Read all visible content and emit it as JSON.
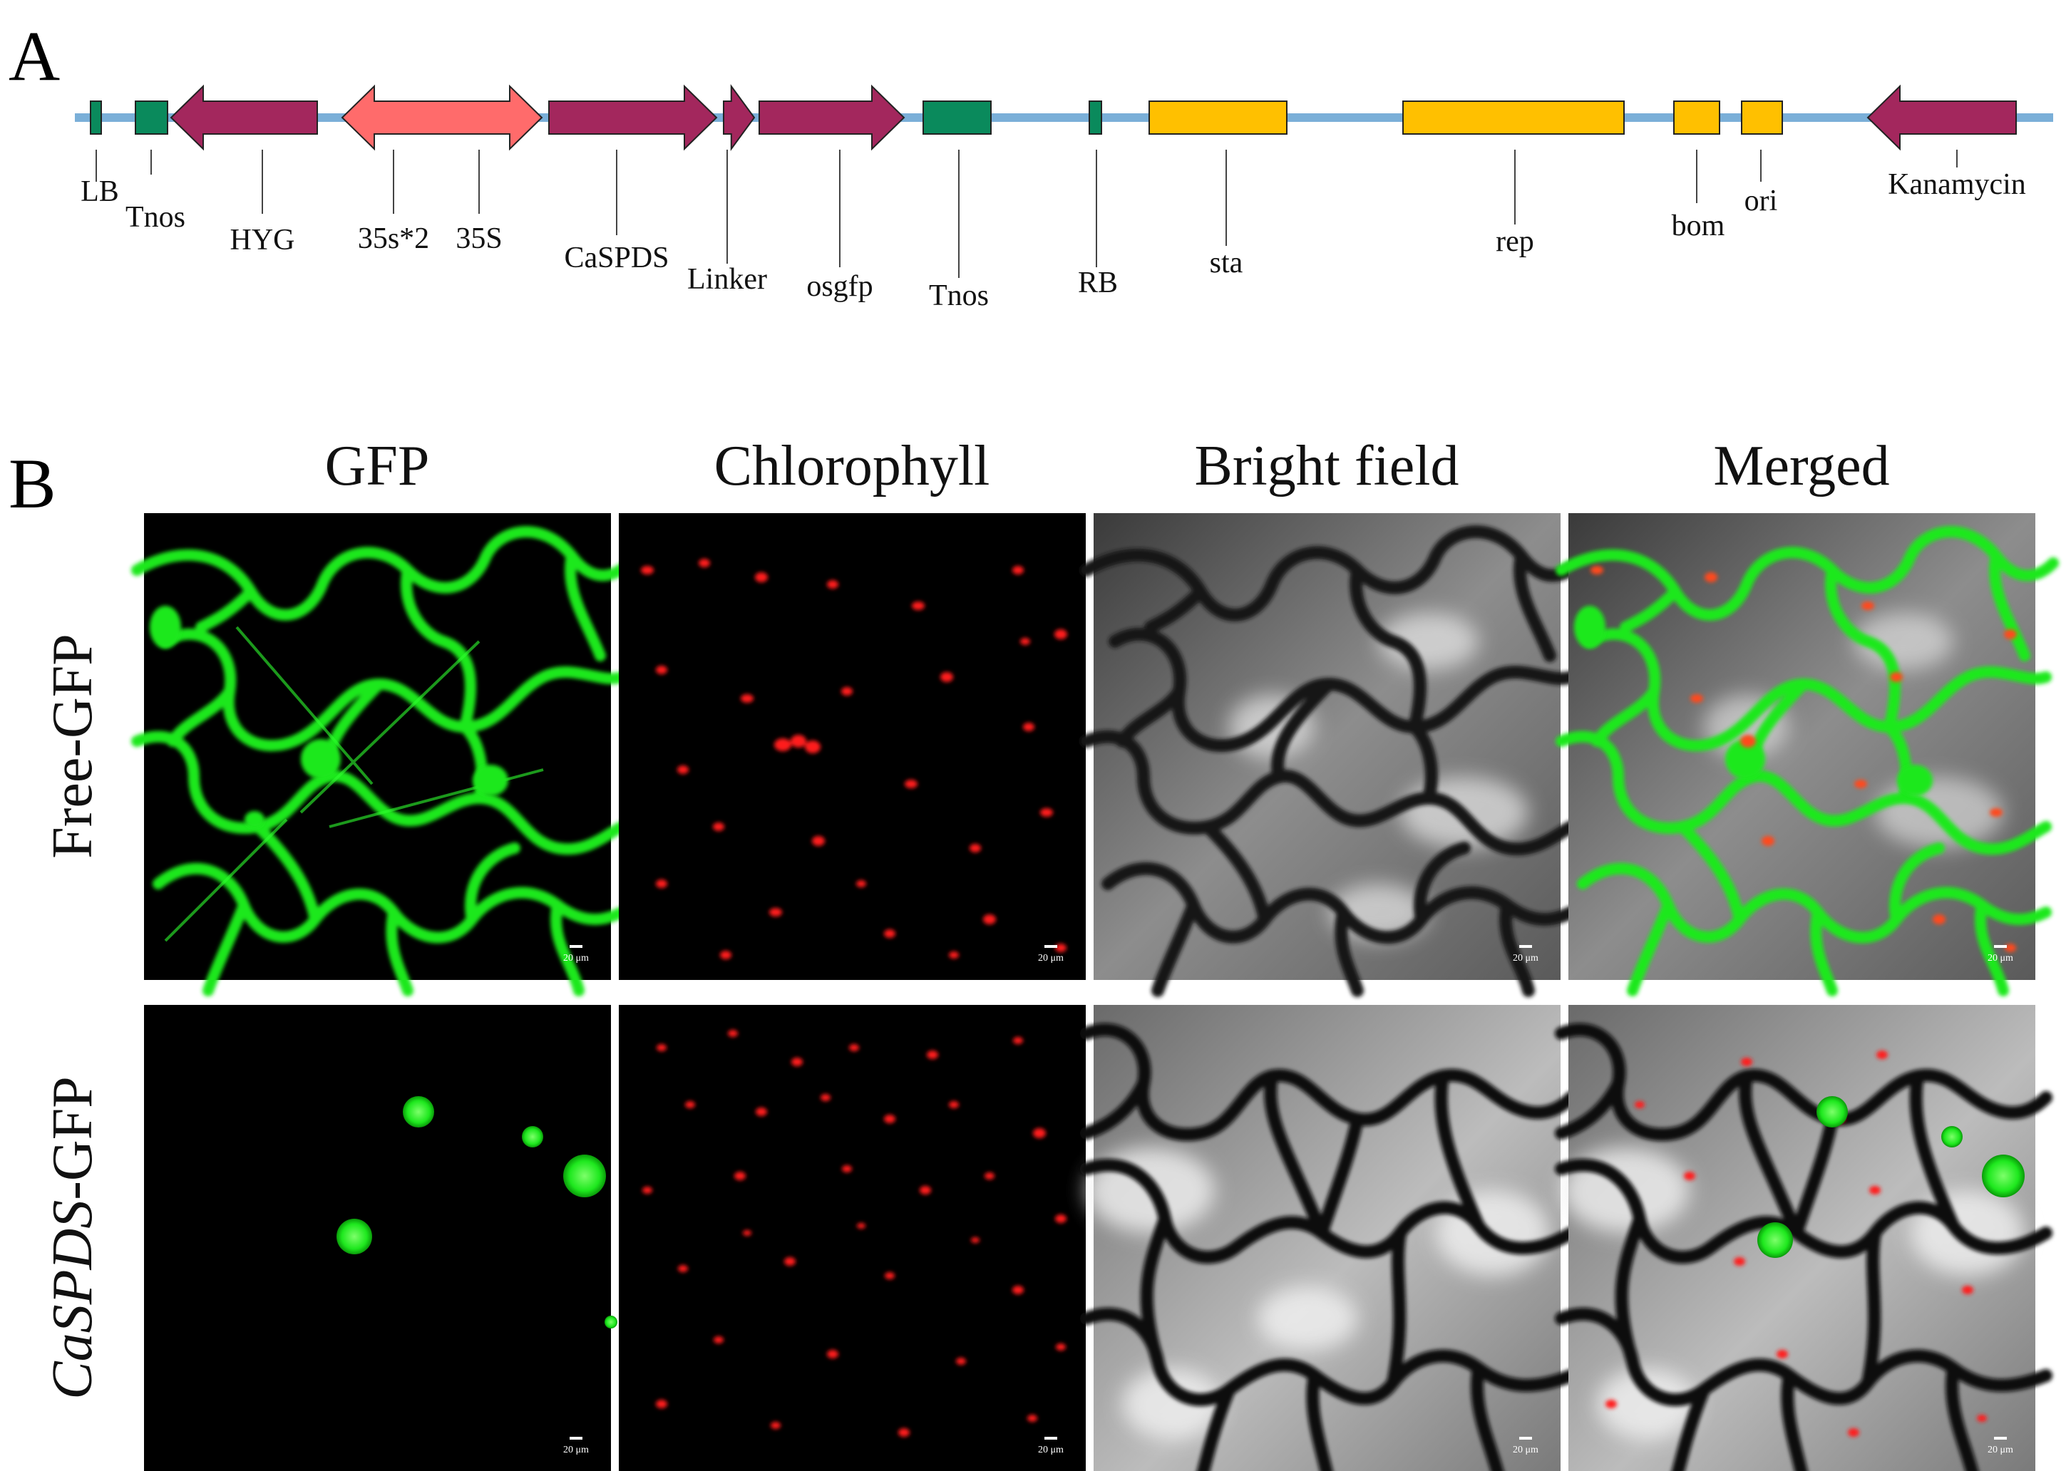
{
  "panel_a": {
    "letter": "A",
    "features": [
      {
        "id": "lb",
        "label": "LB"
      },
      {
        "id": "tnos1",
        "label": "Tnos"
      },
      {
        "id": "hyg",
        "label": "HYG"
      },
      {
        "id": "p35s2",
        "label": "35s*2"
      },
      {
        "id": "p35s",
        "label": "35S"
      },
      {
        "id": "caspds",
        "label": "CaSPDS"
      },
      {
        "id": "linker",
        "label": "Linker"
      },
      {
        "id": "osgfp",
        "label": "osgfp"
      },
      {
        "id": "tnos2",
        "label": "Tnos"
      },
      {
        "id": "rb",
        "label": "RB"
      },
      {
        "id": "sta",
        "label": "sta"
      },
      {
        "id": "rep",
        "label": "rep"
      },
      {
        "id": "bom",
        "label": "bom"
      },
      {
        "id": "ori",
        "label": "ori"
      },
      {
        "id": "kan",
        "label": "Kanamycin"
      }
    ],
    "colors": {
      "backbone": "#7aafd8",
      "purple": "#a3275d",
      "salmon": "#ff6b6b",
      "green": "#0a8a5c",
      "yellow": "#ffc000"
    }
  },
  "panel_b": {
    "letter": "B",
    "columns": [
      "GFP",
      "Chlorophyll",
      "Bright field",
      "Merged"
    ],
    "rows": [
      {
        "label": "Free-GFP",
        "italic_part": "",
        "plain_part": "Free-GFP"
      },
      {
        "label": "CaSPDS-GFP",
        "italic_part": "CaSPDS",
        "plain_part": "-GFP"
      }
    ],
    "scale_bar": "20 μm"
  }
}
